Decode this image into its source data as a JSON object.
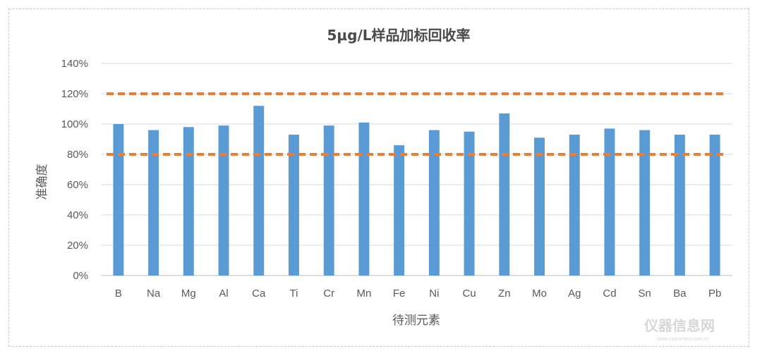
{
  "chart_data": {
    "type": "bar",
    "title": "5μg/L样品加标回收率",
    "xlabel": "待测元素",
    "ylabel": "准确度",
    "categories": [
      "B",
      "Na",
      "Mg",
      "Al",
      "Ca",
      "Ti",
      "Cr",
      "Mn",
      "Fe",
      "Ni",
      "Cu",
      "Zn",
      "Mo",
      "Ag",
      "Cd",
      "Sn",
      "Ba",
      "Pb"
    ],
    "series": [
      {
        "values": [
          100,
          96,
          98,
          99,
          112,
          93,
          99,
          101,
          86,
          96,
          95,
          107,
          91,
          93,
          97,
          96,
          93,
          93
        ],
        "color": "#5b9bd5"
      }
    ],
    "reference_lines": [
      {
        "value": 120,
        "color": "#ed7d31",
        "style": "dashed"
      },
      {
        "value": 80,
        "color": "#ed7d31",
        "style": "dashed"
      }
    ],
    "ylim": [
      0,
      140
    ],
    "yticks": [
      "0%",
      "20%",
      "40%",
      "60%",
      "80%",
      "100%",
      "120%",
      "140%"
    ],
    "grid": true
  },
  "watermark": {
    "text": "仪器信息网",
    "subtext": "www.instrument.com.cn"
  }
}
